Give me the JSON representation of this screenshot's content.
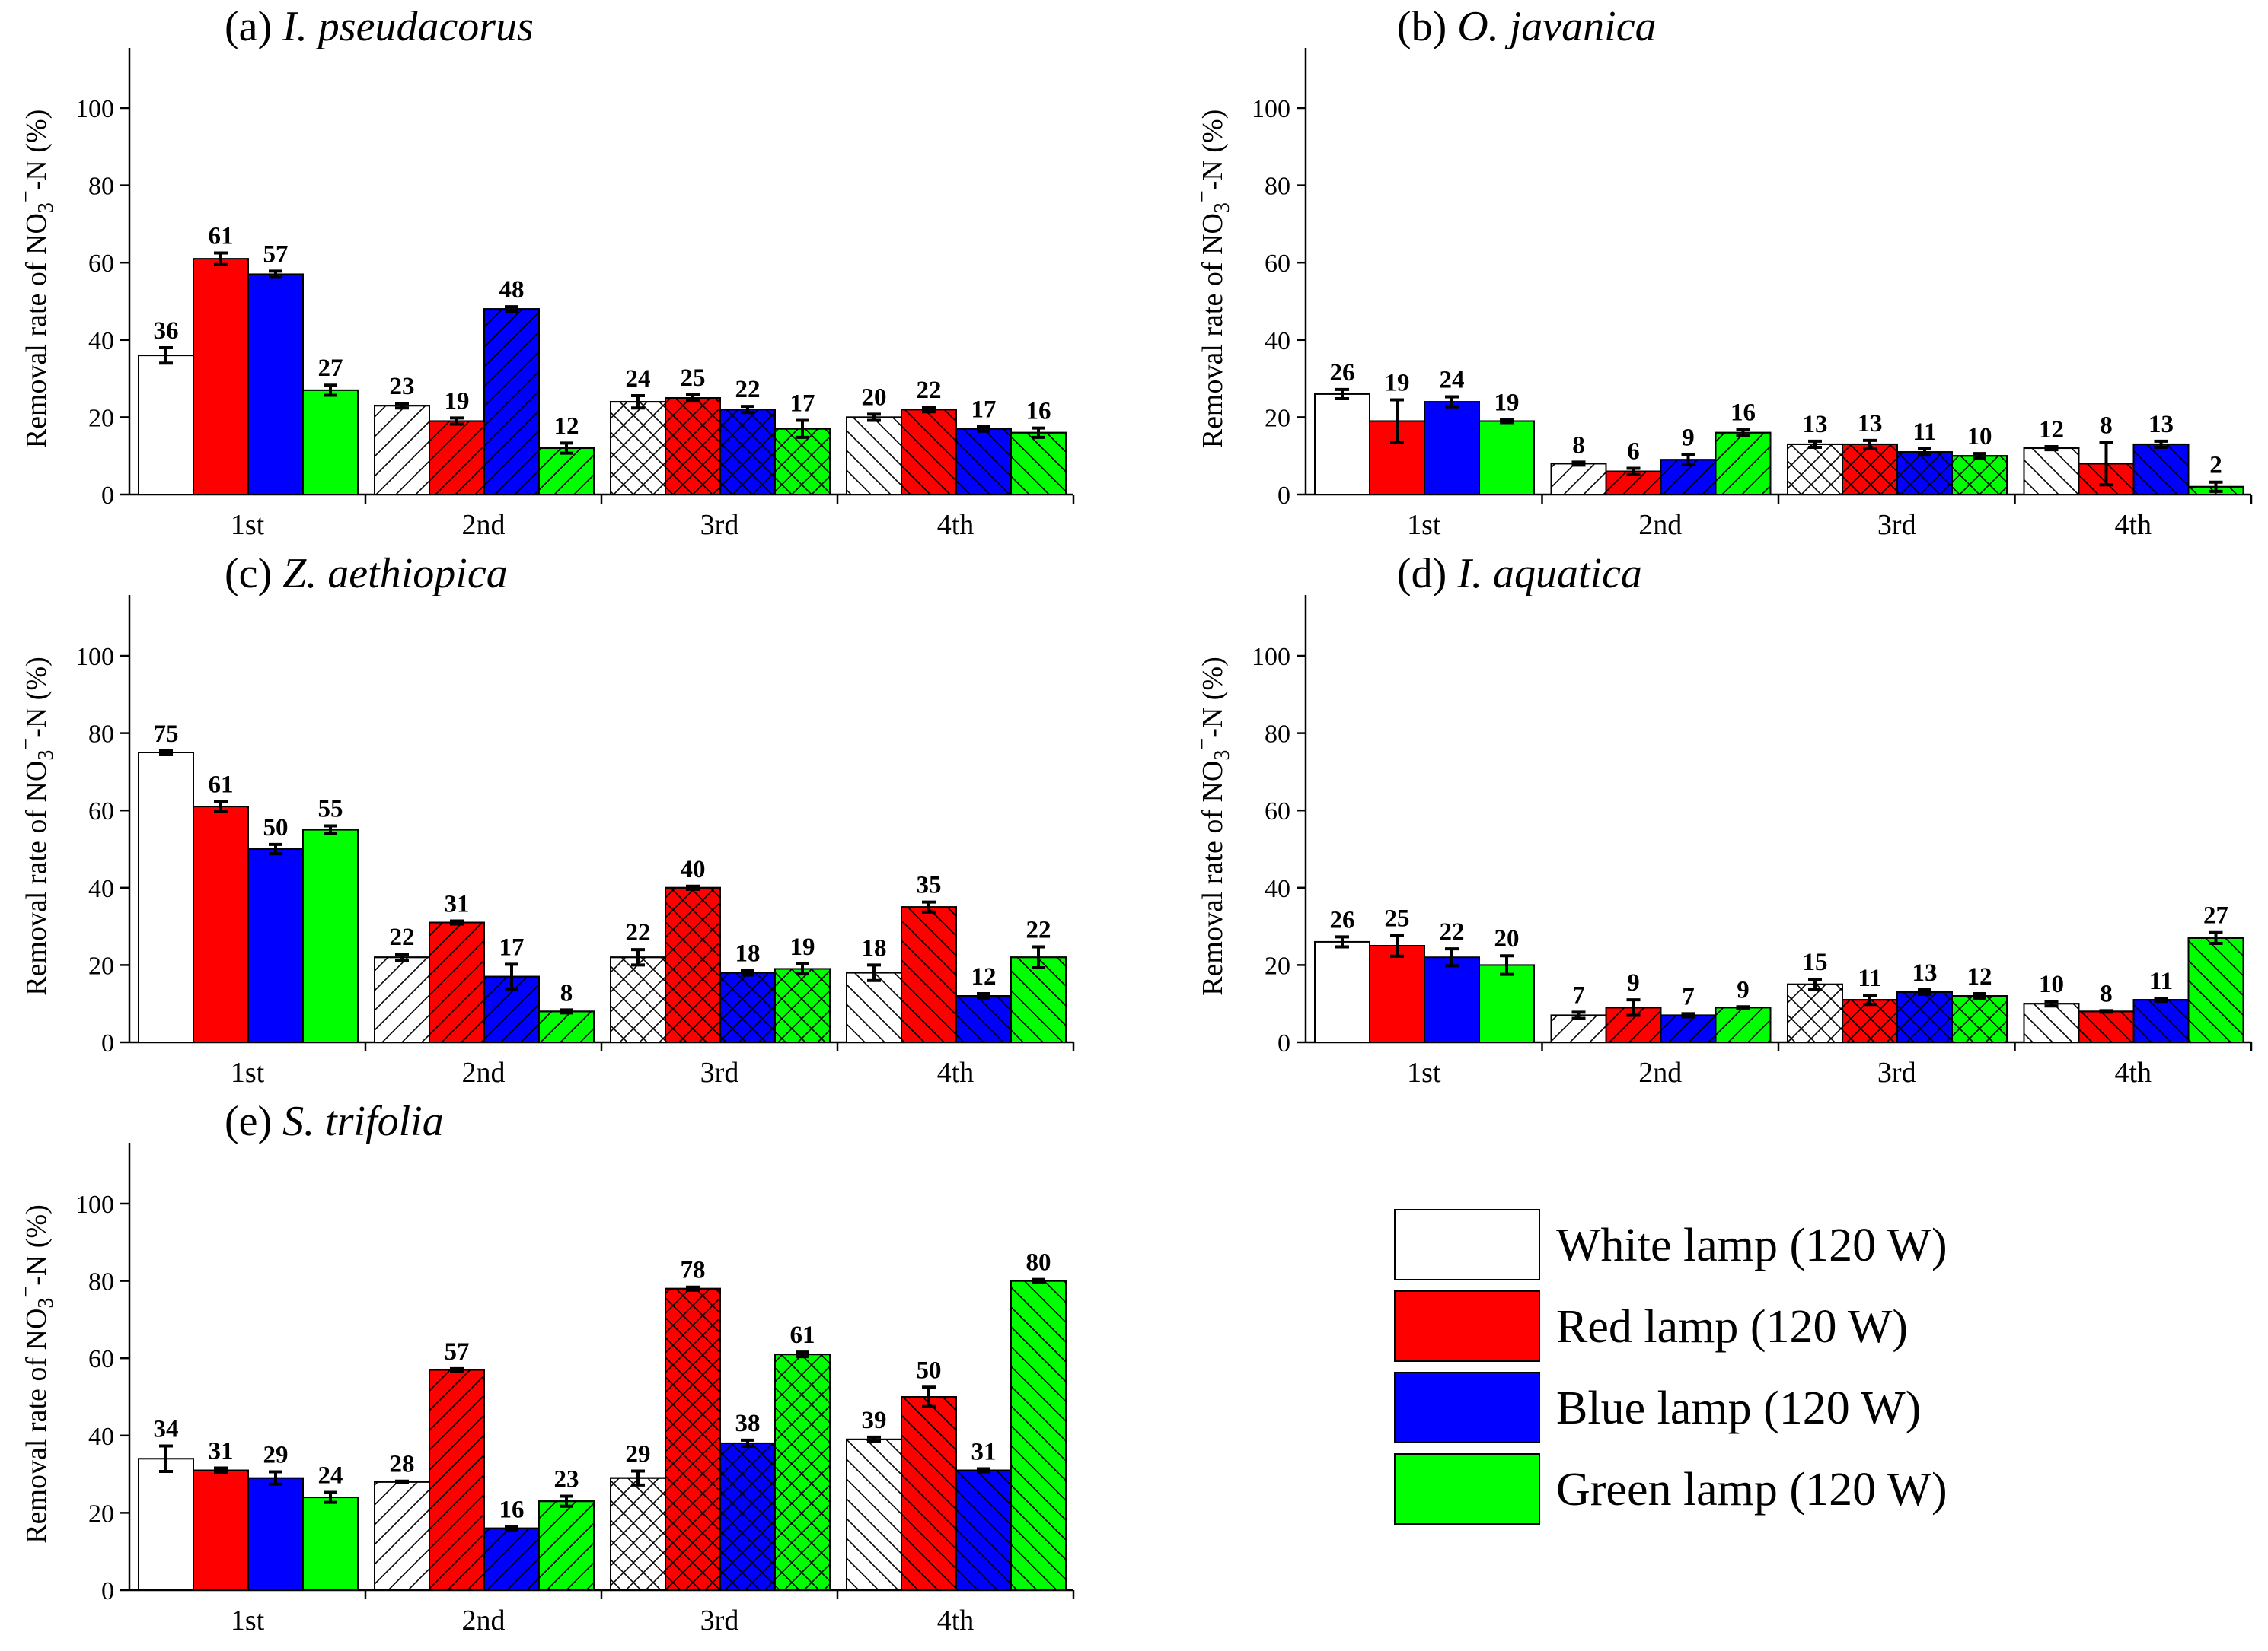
{
  "chart_data": [
    {
      "type": "bar",
      "title": "(a) I. pseudacorus",
      "title_prefix": "(a)",
      "title_species": "I. pseudacorus",
      "categories": [
        "1st",
        "2nd",
        "3rd",
        "4th"
      ],
      "ylabel": "Removal rate of NO3−-N (%)",
      "ylim": [
        0,
        115
      ],
      "yticks": [
        0,
        20,
        40,
        60,
        80,
        100
      ],
      "series": [
        {
          "name": "White lamp (120 W)",
          "values": [
            36,
            23,
            24,
            20
          ],
          "errors": [
            2.0,
            0.6,
            1.6,
            0.8
          ],
          "labels": [
            "36",
            "23",
            "24",
            "20"
          ]
        },
        {
          "name": "Red lamp (120 W)",
          "values": [
            61,
            19,
            25,
            22
          ],
          "errors": [
            1.5,
            0.8,
            0.8,
            0.6
          ],
          "labels": [
            "61",
            "19",
            "25",
            "22"
          ]
        },
        {
          "name": "Blue lamp (120 W)",
          "values": [
            57,
            48,
            22,
            17
          ],
          "errors": [
            0.8,
            0.6,
            0.8,
            0.6
          ],
          "labels": [
            "57",
            "48",
            "22",
            "17"
          ]
        },
        {
          "name": "Green lamp (120 W)",
          "values": [
            27,
            12,
            17,
            16
          ],
          "errors": [
            1.3,
            1.3,
            2.2,
            1.2
          ],
          "labels": [
            "27",
            "12",
            "17",
            "16"
          ]
        }
      ]
    },
    {
      "type": "bar",
      "title": "(b) O. javanica",
      "title_prefix": "(b)",
      "title_species": "O. javanica",
      "categories": [
        "1st",
        "2nd",
        "3rd",
        "4th"
      ],
      "ylabel": "Removal rate of NO3−-N (%)",
      "ylim": [
        0,
        115
      ],
      "yticks": [
        0,
        20,
        40,
        60,
        80,
        100
      ],
      "series": [
        {
          "name": "White lamp (120 W)",
          "values": [
            26,
            8,
            13,
            12
          ],
          "errors": [
            1.2,
            0.4,
            0.8,
            0.4
          ],
          "labels": [
            "26",
            "8",
            "13",
            "12"
          ]
        },
        {
          "name": "Red lamp (120 W)",
          "values": [
            19,
            6,
            13,
            8
          ],
          "errors": [
            5.5,
            0.8,
            1.0,
            5.5
          ],
          "labels": [
            "19",
            "6",
            "13",
            "8"
          ]
        },
        {
          "name": "Blue lamp (120 W)",
          "values": [
            24,
            9,
            11,
            13
          ],
          "errors": [
            1.3,
            1.3,
            0.8,
            0.8
          ],
          "labels": [
            "24",
            "9",
            "11",
            "13"
          ]
        },
        {
          "name": "Green lamp (120 W)",
          "values": [
            19,
            16,
            10,
            2
          ],
          "errors": [
            0.4,
            0.8,
            0.6,
            1.2
          ],
          "labels": [
            "19",
            "16",
            "10",
            "2"
          ]
        }
      ]
    },
    {
      "type": "bar",
      "title": "(c) Z. aethiopica",
      "title_prefix": "(c)",
      "title_species": "Z. aethiopica",
      "categories": [
        "1st",
        "2nd",
        "3rd",
        "4th"
      ],
      "ylabel": "Removal rate of NO3−-N (%)",
      "ylim": [
        0,
        115
      ],
      "yticks": [
        0,
        20,
        40,
        60,
        80,
        100
      ],
      "series": [
        {
          "name": "White lamp (120 W)",
          "values": [
            75,
            22,
            22,
            18
          ],
          "errors": [
            0.4,
            0.8,
            2.0,
            2.0
          ],
          "labels": [
            "75",
            "22",
            "22",
            "18"
          ]
        },
        {
          "name": "Red lamp (120 W)",
          "values": [
            61,
            31,
            40,
            35
          ],
          "errors": [
            1.3,
            0.4,
            0.4,
            1.3
          ],
          "labels": [
            "61",
            "31",
            "40",
            "35"
          ]
        },
        {
          "name": "Blue lamp (120 W)",
          "values": [
            50,
            17,
            18,
            12
          ],
          "errors": [
            1.2,
            3.2,
            0.6,
            0.6
          ],
          "labels": [
            "50",
            "17",
            "18",
            "12"
          ]
        },
        {
          "name": "Green lamp (120 W)",
          "values": [
            55,
            8,
            19,
            22
          ],
          "errors": [
            1.0,
            0.4,
            1.3,
            2.7
          ],
          "labels": [
            "55",
            "8",
            "19",
            "22"
          ]
        }
      ]
    },
    {
      "type": "bar",
      "title": "(d) I. aquatica",
      "title_prefix": "(d)",
      "title_species": "I. aquatica",
      "categories": [
        "1st",
        "2nd",
        "3rd",
        "4th"
      ],
      "ylabel": "Removal rate of NO3−-N (%)",
      "ylim": [
        0,
        115
      ],
      "yticks": [
        0,
        20,
        40,
        60,
        80,
        100
      ],
      "series": [
        {
          "name": "White lamp (120 W)",
          "values": [
            26,
            7,
            15,
            10
          ],
          "errors": [
            1.3,
            0.8,
            1.3,
            0.6
          ],
          "labels": [
            "26",
            "7",
            "15",
            "10"
          ]
        },
        {
          "name": "Red lamp (120 W)",
          "values": [
            25,
            9,
            11,
            8
          ],
          "errors": [
            2.7,
            2.0,
            1.2,
            0.2
          ],
          "labels": [
            "25",
            "9",
            "11",
            "8"
          ]
        },
        {
          "name": "Blue lamp (120 W)",
          "values": [
            22,
            7,
            13,
            11
          ],
          "errors": [
            2.2,
            0.4,
            0.6,
            0.4
          ],
          "labels": [
            "22",
            "7",
            "13",
            "11"
          ]
        },
        {
          "name": "Green lamp (120 W)",
          "values": [
            20,
            9,
            12,
            27
          ],
          "errors": [
            2.4,
            0.2,
            0.6,
            1.4
          ],
          "labels": [
            "20",
            "9",
            "12",
            "27"
          ]
        }
      ]
    },
    {
      "type": "bar",
      "title": "(e) S. trifolia",
      "title_prefix": "(e)",
      "title_species": "S. trifolia",
      "categories": [
        "1st",
        "2nd",
        "3rd",
        "4th"
      ],
      "ylabel": "Removal rate of NO3−-N (%)",
      "ylim": [
        0,
        115
      ],
      "yticks": [
        0,
        20,
        40,
        60,
        80,
        100
      ],
      "series": [
        {
          "name": "White lamp (120 W)",
          "values": [
            34,
            28,
            29,
            39
          ],
          "errors": [
            3.3,
            0.2,
            1.8,
            0.6
          ],
          "labels": [
            "34",
            "28",
            "29",
            "39"
          ]
        },
        {
          "name": "Red lamp (120 W)",
          "values": [
            31,
            57,
            78,
            50
          ],
          "errors": [
            0.6,
            0.3,
            0.4,
            2.5
          ],
          "labels": [
            "31",
            "57",
            "78",
            "50"
          ]
        },
        {
          "name": "Blue lamp (120 W)",
          "values": [
            29,
            16,
            38,
            31
          ],
          "errors": [
            1.6,
            0.4,
            0.8,
            0.4
          ],
          "labels": [
            "29",
            "16",
            "38",
            "31"
          ]
        },
        {
          "name": "Green lamp (120 W)",
          "values": [
            24,
            23,
            61,
            80
          ],
          "errors": [
            1.3,
            1.3,
            0.6,
            0.4
          ],
          "labels": [
            "24",
            "23",
            "61",
            "80"
          ]
        }
      ]
    }
  ],
  "legend": {
    "placement": "bottom-right",
    "items": [
      {
        "label": "White lamp (120 W)",
        "color": "#ffffff"
      },
      {
        "label": "Red lamp (120 W)",
        "color": "#ff0000"
      },
      {
        "label": "Blue lamp (120 W)",
        "color": "#0000ff"
      },
      {
        "label": "Green lamp (120 W)",
        "color": "#00ff00"
      }
    ]
  },
  "axis_label": {
    "prefix": "Removal rate of NO",
    "subscript": "3",
    "superscript": "−",
    "suffix": "-N  (%)"
  },
  "colors": {
    "white": "#ffffff",
    "red": "#ff0000",
    "blue": "#0000ff",
    "green": "#00ff00",
    "outline": "#000000"
  }
}
